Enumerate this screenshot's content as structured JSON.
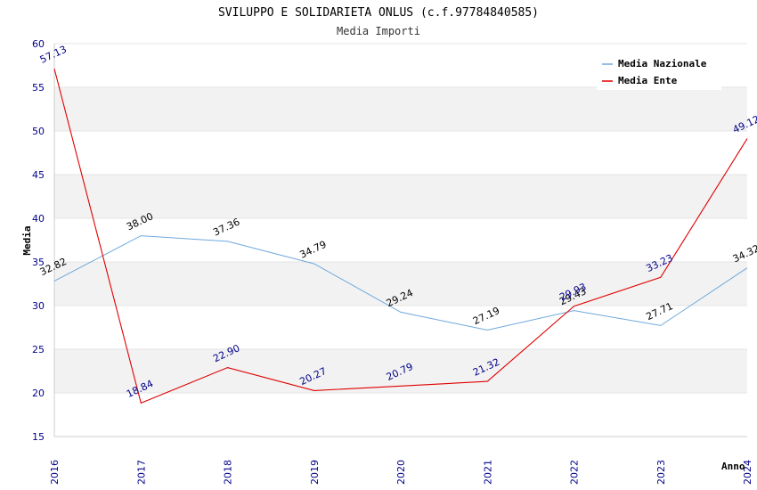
{
  "chart_data": {
    "type": "line",
    "title": "SVILUPPO E SOLIDARIETA ONLUS (c.f.97784840585)",
    "subtitle": "Media Importi",
    "xlabel": "Anno",
    "ylabel": "Media",
    "x": [
      "2016",
      "2017",
      "2018",
      "2019",
      "2020",
      "2021",
      "2022",
      "2023",
      "2024"
    ],
    "ylim": [
      15,
      60
    ],
    "yticks": [
      15,
      20,
      25,
      30,
      35,
      40,
      45,
      50,
      55,
      60
    ],
    "grid": "horizontal alternating bands",
    "legend_position": "top-right",
    "series": [
      {
        "name": "Media Nazionale",
        "color": "#6fa8dc",
        "values": [
          32.82,
          38.0,
          37.36,
          34.79,
          29.24,
          27.19,
          29.43,
          27.71,
          34.32
        ],
        "labels": [
          "32.82",
          "38.00",
          "37.36",
          "34.79",
          "29.24",
          "27.19",
          "29.43",
          "27.71",
          "34.32"
        ]
      },
      {
        "name": "Media Ente",
        "color": "#e00000",
        "values": [
          57.13,
          18.84,
          22.9,
          20.27,
          20.79,
          21.32,
          29.93,
          33.23,
          49.12
        ],
        "labels": [
          "57.13",
          "18.84",
          "22.90",
          "20.27",
          "20.79",
          "21.32",
          "29.93",
          "33.23",
          "49.12"
        ]
      }
    ]
  }
}
